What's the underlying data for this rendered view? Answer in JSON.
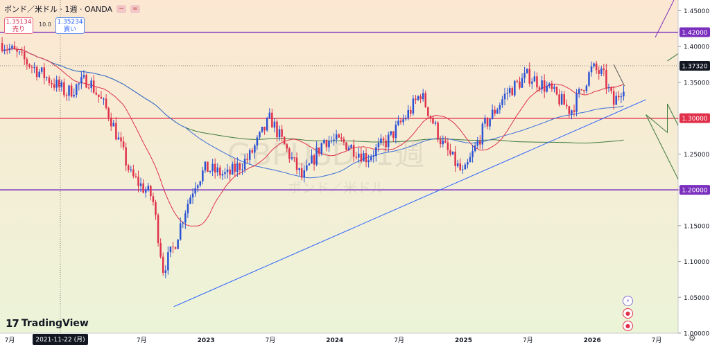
{
  "header": {
    "title": "ポンド／米ドル · 1週 · OANDA",
    "sell_price": "1.35134",
    "sell_label": "売り",
    "spread": "10.0",
    "buy_price": "1.35234",
    "buy_label": "買い"
  },
  "watermark": {
    "line1": "GBPUSD, 1週",
    "line2": "ポンド／米ドル"
  },
  "logo": {
    "text": "TradingView"
  },
  "colors": {
    "bg_top": "#fce7d2",
    "bg_bottom": "#ecf4d8",
    "up": "#2a52d4",
    "down": "#e0304a",
    "ma_short": "#e0304a",
    "ma_mid": "#3a6fd8",
    "ma_long": "#3c7a3c",
    "trend": "#2962ff"
  },
  "chart_data": {
    "type": "candlestick",
    "ylim": [
      1.0,
      1.465
    ],
    "y_ticks": [
      "1.45000",
      "1.40000",
      "1.35000",
      "1.30000",
      "1.25000",
      "1.20000",
      "1.15000",
      "1.10000",
      "1.05000",
      "1.00000"
    ],
    "x_ticks": [
      "7月",
      "2023",
      "7月",
      "2024",
      "7月",
      "2025",
      "7月",
      "2026",
      "7月"
    ],
    "crosshair_label": "2021-11-22 (月)",
    "price_labels": [
      {
        "text": "1.42000",
        "value": 1.42,
        "color": "#7b2fbe"
      },
      {
        "text": "1.37320",
        "value": 1.3732,
        "color": "#131722"
      },
      {
        "text": "1.30000",
        "value": 1.3,
        "color": "#e0304a"
      },
      {
        "text": "1.20000",
        "value": 1.2,
        "color": "#7b2fbe"
      }
    ],
    "horizontal_lines": [
      {
        "value": 1.42,
        "color": "#7b2fbe"
      },
      {
        "value": 1.3,
        "color": "#e0304a"
      },
      {
        "value": 1.2,
        "color": "#7b2fbe"
      }
    ],
    "trendline": {
      "from": [
        "2022-10",
        1.037
      ],
      "to": [
        "2026-06",
        1.326
      ]
    },
    "anchors": [
      [
        "2021-06",
        1.405
      ],
      [
        "2021-09",
        1.37
      ],
      [
        "2021-12",
        1.335
      ],
      [
        "2022-02",
        1.355
      ],
      [
        "2022-04",
        1.305
      ],
      [
        "2022-06",
        1.22
      ],
      [
        "2022-08",
        1.19
      ],
      [
        "2022-09",
        1.09
      ],
      [
        "2022-10",
        1.12
      ],
      [
        "2022-11",
        1.17
      ],
      [
        "2022-12",
        1.21
      ],
      [
        "2023-01",
        1.23
      ],
      [
        "2023-03",
        1.22
      ],
      [
        "2023-05",
        1.245
      ],
      [
        "2023-07",
        1.3
      ],
      [
        "2023-08",
        1.27
      ],
      [
        "2023-10",
        1.215
      ],
      [
        "2023-12",
        1.27
      ],
      [
        "2024-02",
        1.265
      ],
      [
        "2024-04",
        1.245
      ],
      [
        "2024-06",
        1.27
      ],
      [
        "2024-08",
        1.31
      ],
      [
        "2024-09",
        1.335
      ],
      [
        "2024-10",
        1.3
      ],
      [
        "2024-11",
        1.265
      ],
      [
        "2025-01",
        1.22
      ],
      [
        "2025-03",
        1.29
      ],
      [
        "2025-05",
        1.335
      ],
      [
        "2025-07",
        1.36
      ],
      [
        "2025-09",
        1.34
      ],
      [
        "2025-11",
        1.31
      ],
      [
        "2026-01",
        1.37
      ],
      [
        "2026-02",
        1.36
      ],
      [
        "2026-03",
        1.32
      ],
      [
        "2026-04",
        1.35
      ]
    ]
  }
}
